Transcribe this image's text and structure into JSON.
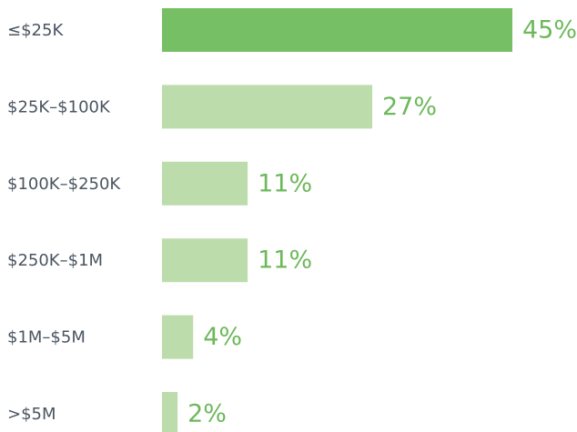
{
  "chart_data": {
    "type": "bar",
    "orientation": "horizontal",
    "categories": [
      "≤$25K",
      "$25K–$100K",
      "$100K–$250K",
      "$250K–$1M",
      "$1M–$5M",
      ">$5M"
    ],
    "values": [
      45,
      27,
      11,
      11,
      4,
      2
    ],
    "value_labels": [
      "45%",
      "27%",
      "11%",
      "11%",
      "4%",
      "2%"
    ],
    "colors": [
      "#77bf65",
      "#bddcac",
      "#bddcac",
      "#bddcac",
      "#bddcac",
      "#bddcac"
    ]
  }
}
